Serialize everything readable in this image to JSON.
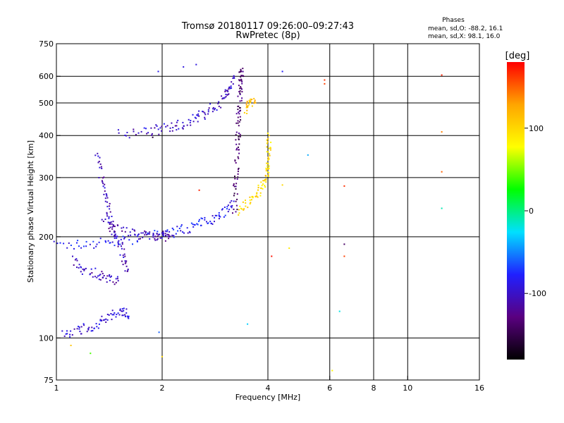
{
  "chart_data": {
    "type": "scatter",
    "title": "Tromsø 20180117 09:26:00–09:27:43",
    "subtitle": "RwPretec (8p)",
    "xlabel": "Frequency [MHz]",
    "ylabel": "Stationary phase Virtual Height [km]",
    "x_scale": "log",
    "y_scale": "log",
    "xlim": [
      1,
      16
    ],
    "ylim": [
      75,
      750
    ],
    "x_ticks": [
      1,
      2,
      4,
      6,
      8,
      10,
      16
    ],
    "y_ticks": [
      75,
      100,
      200,
      300,
      400,
      500,
      600,
      750
    ],
    "grid": true,
    "stats": {
      "heading": "Phases",
      "line1": "mean, sd,O: -88.2, 16.1",
      "line2": "mean, sd,X:  98.1, 16.0"
    },
    "colorbar": {
      "label": "[deg]",
      "range": [
        -180,
        180
      ],
      "ticks": [
        100,
        0,
        -100
      ],
      "colors": [
        "#000000",
        "#5a0080",
        "#2020ff",
        "#00e0ff",
        "#00ff00",
        "#ffff00",
        "#ffa500",
        "#ff0000"
      ]
    },
    "o_mode_traces": [
      {
        "points": [
          [
            1.0,
            188
          ],
          [
            1.2,
            190
          ],
          [
            1.4,
            193
          ],
          [
            1.6,
            196
          ],
          [
            1.8,
            200
          ],
          [
            2.0,
            203
          ],
          [
            2.2,
            208
          ],
          [
            2.4,
            213
          ],
          [
            2.6,
            220
          ],
          [
            2.8,
            228
          ],
          [
            3.0,
            238
          ],
          [
            3.2,
            255
          ]
        ],
        "phase": -85
      },
      {
        "points": [
          [
            1.35,
            220
          ],
          [
            1.5,
            210
          ],
          [
            1.7,
            204
          ],
          [
            1.9,
            202
          ],
          [
            2.0,
            201
          ],
          [
            2.1,
            200
          ]
        ],
        "phase": -110
      },
      {
        "points": [
          [
            1.5,
            405
          ],
          [
            1.8,
            410
          ],
          [
            2.0,
            418
          ],
          [
            2.2,
            428
          ],
          [
            2.4,
            440
          ],
          [
            2.6,
            460
          ],
          [
            2.8,
            485
          ],
          [
            3.0,
            515
          ],
          [
            3.1,
            550
          ],
          [
            3.2,
            600
          ]
        ],
        "phase": -100
      },
      {
        "points": [
          [
            3.22,
            240
          ],
          [
            3.24,
            280
          ],
          [
            3.26,
            330
          ],
          [
            3.28,
            380
          ],
          [
            3.3,
            430
          ],
          [
            3.32,
            480
          ],
          [
            3.34,
            540
          ],
          [
            3.35,
            600
          ],
          [
            3.36,
            620
          ]
        ],
        "phase": -135
      },
      {
        "points": [
          [
            1.3,
            350
          ],
          [
            1.35,
            300
          ],
          [
            1.38,
            260
          ],
          [
            1.42,
            230
          ],
          [
            1.45,
            210
          ],
          [
            1.5,
            195
          ],
          [
            1.55,
            175
          ],
          [
            1.6,
            160
          ]
        ],
        "phase": -105
      },
      {
        "points": [
          [
            1.05,
            103
          ],
          [
            1.15,
            105
          ],
          [
            1.25,
            108
          ],
          [
            1.35,
            112
          ],
          [
            1.45,
            117
          ],
          [
            1.55,
            120
          ],
          [
            1.6,
            115
          ]
        ],
        "phase": -95
      },
      {
        "points": [
          [
            1.1,
            170
          ],
          [
            1.2,
            160
          ],
          [
            1.3,
            155
          ],
          [
            1.4,
            150
          ],
          [
            1.5,
            148
          ]
        ],
        "phase": -105
      }
    ],
    "x_mode_traces": [
      {
        "points": [
          [
            3.3,
            240
          ],
          [
            3.5,
            250
          ],
          [
            3.7,
            265
          ],
          [
            3.85,
            280
          ],
          [
            3.95,
            300
          ],
          [
            4.0,
            330
          ],
          [
            4.02,
            360
          ],
          [
            4.03,
            400
          ]
        ],
        "phase": 98
      },
      {
        "points": [
          [
            3.45,
            480
          ],
          [
            3.55,
            495
          ],
          [
            3.65,
            515
          ]
        ],
        "phase": 110
      }
    ],
    "isolated_points": [
      {
        "x": 12.5,
        "y": 605,
        "phase": 170
      },
      {
        "x": 12.5,
        "y": 410,
        "phase": 140
      },
      {
        "x": 12.5,
        "y": 312,
        "phase": 150
      },
      {
        "x": 12.5,
        "y": 243,
        "phase": -10
      },
      {
        "x": 6.6,
        "y": 283,
        "phase": 165
      },
      {
        "x": 6.6,
        "y": 175,
        "phase": 160
      },
      {
        "x": 6.6,
        "y": 190,
        "phase": -140
      },
      {
        "x": 6.4,
        "y": 120,
        "phase": -20
      },
      {
        "x": 6.1,
        "y": 80,
        "phase": 80
      },
      {
        "x": 5.8,
        "y": 585,
        "phase": 165
      },
      {
        "x": 5.8,
        "y": 570,
        "phase": 160
      },
      {
        "x": 4.4,
        "y": 620,
        "phase": -80
      },
      {
        "x": 4.6,
        "y": 185,
        "phase": 90
      },
      {
        "x": 4.4,
        "y": 285,
        "phase": 100
      },
      {
        "x": 4.1,
        "y": 175,
        "phase": 175
      },
      {
        "x": 3.5,
        "y": 110,
        "phase": -30
      },
      {
        "x": 5.2,
        "y": 350,
        "phase": -40
      },
      {
        "x": 1.1,
        "y": 95,
        "phase": 110
      },
      {
        "x": 1.25,
        "y": 90,
        "phase": 40
      },
      {
        "x": 1.96,
        "y": 104,
        "phase": -60
      },
      {
        "x": 2.0,
        "y": 88,
        "phase": 100
      },
      {
        "x": 2.55,
        "y": 275,
        "phase": 170
      },
      {
        "x": 1.88,
        "y": 395,
        "phase": -160
      },
      {
        "x": 2.3,
        "y": 640,
        "phase": -90
      },
      {
        "x": 2.5,
        "y": 650,
        "phase": -90
      },
      {
        "x": 1.95,
        "y": 620,
        "phase": -85
      }
    ]
  }
}
